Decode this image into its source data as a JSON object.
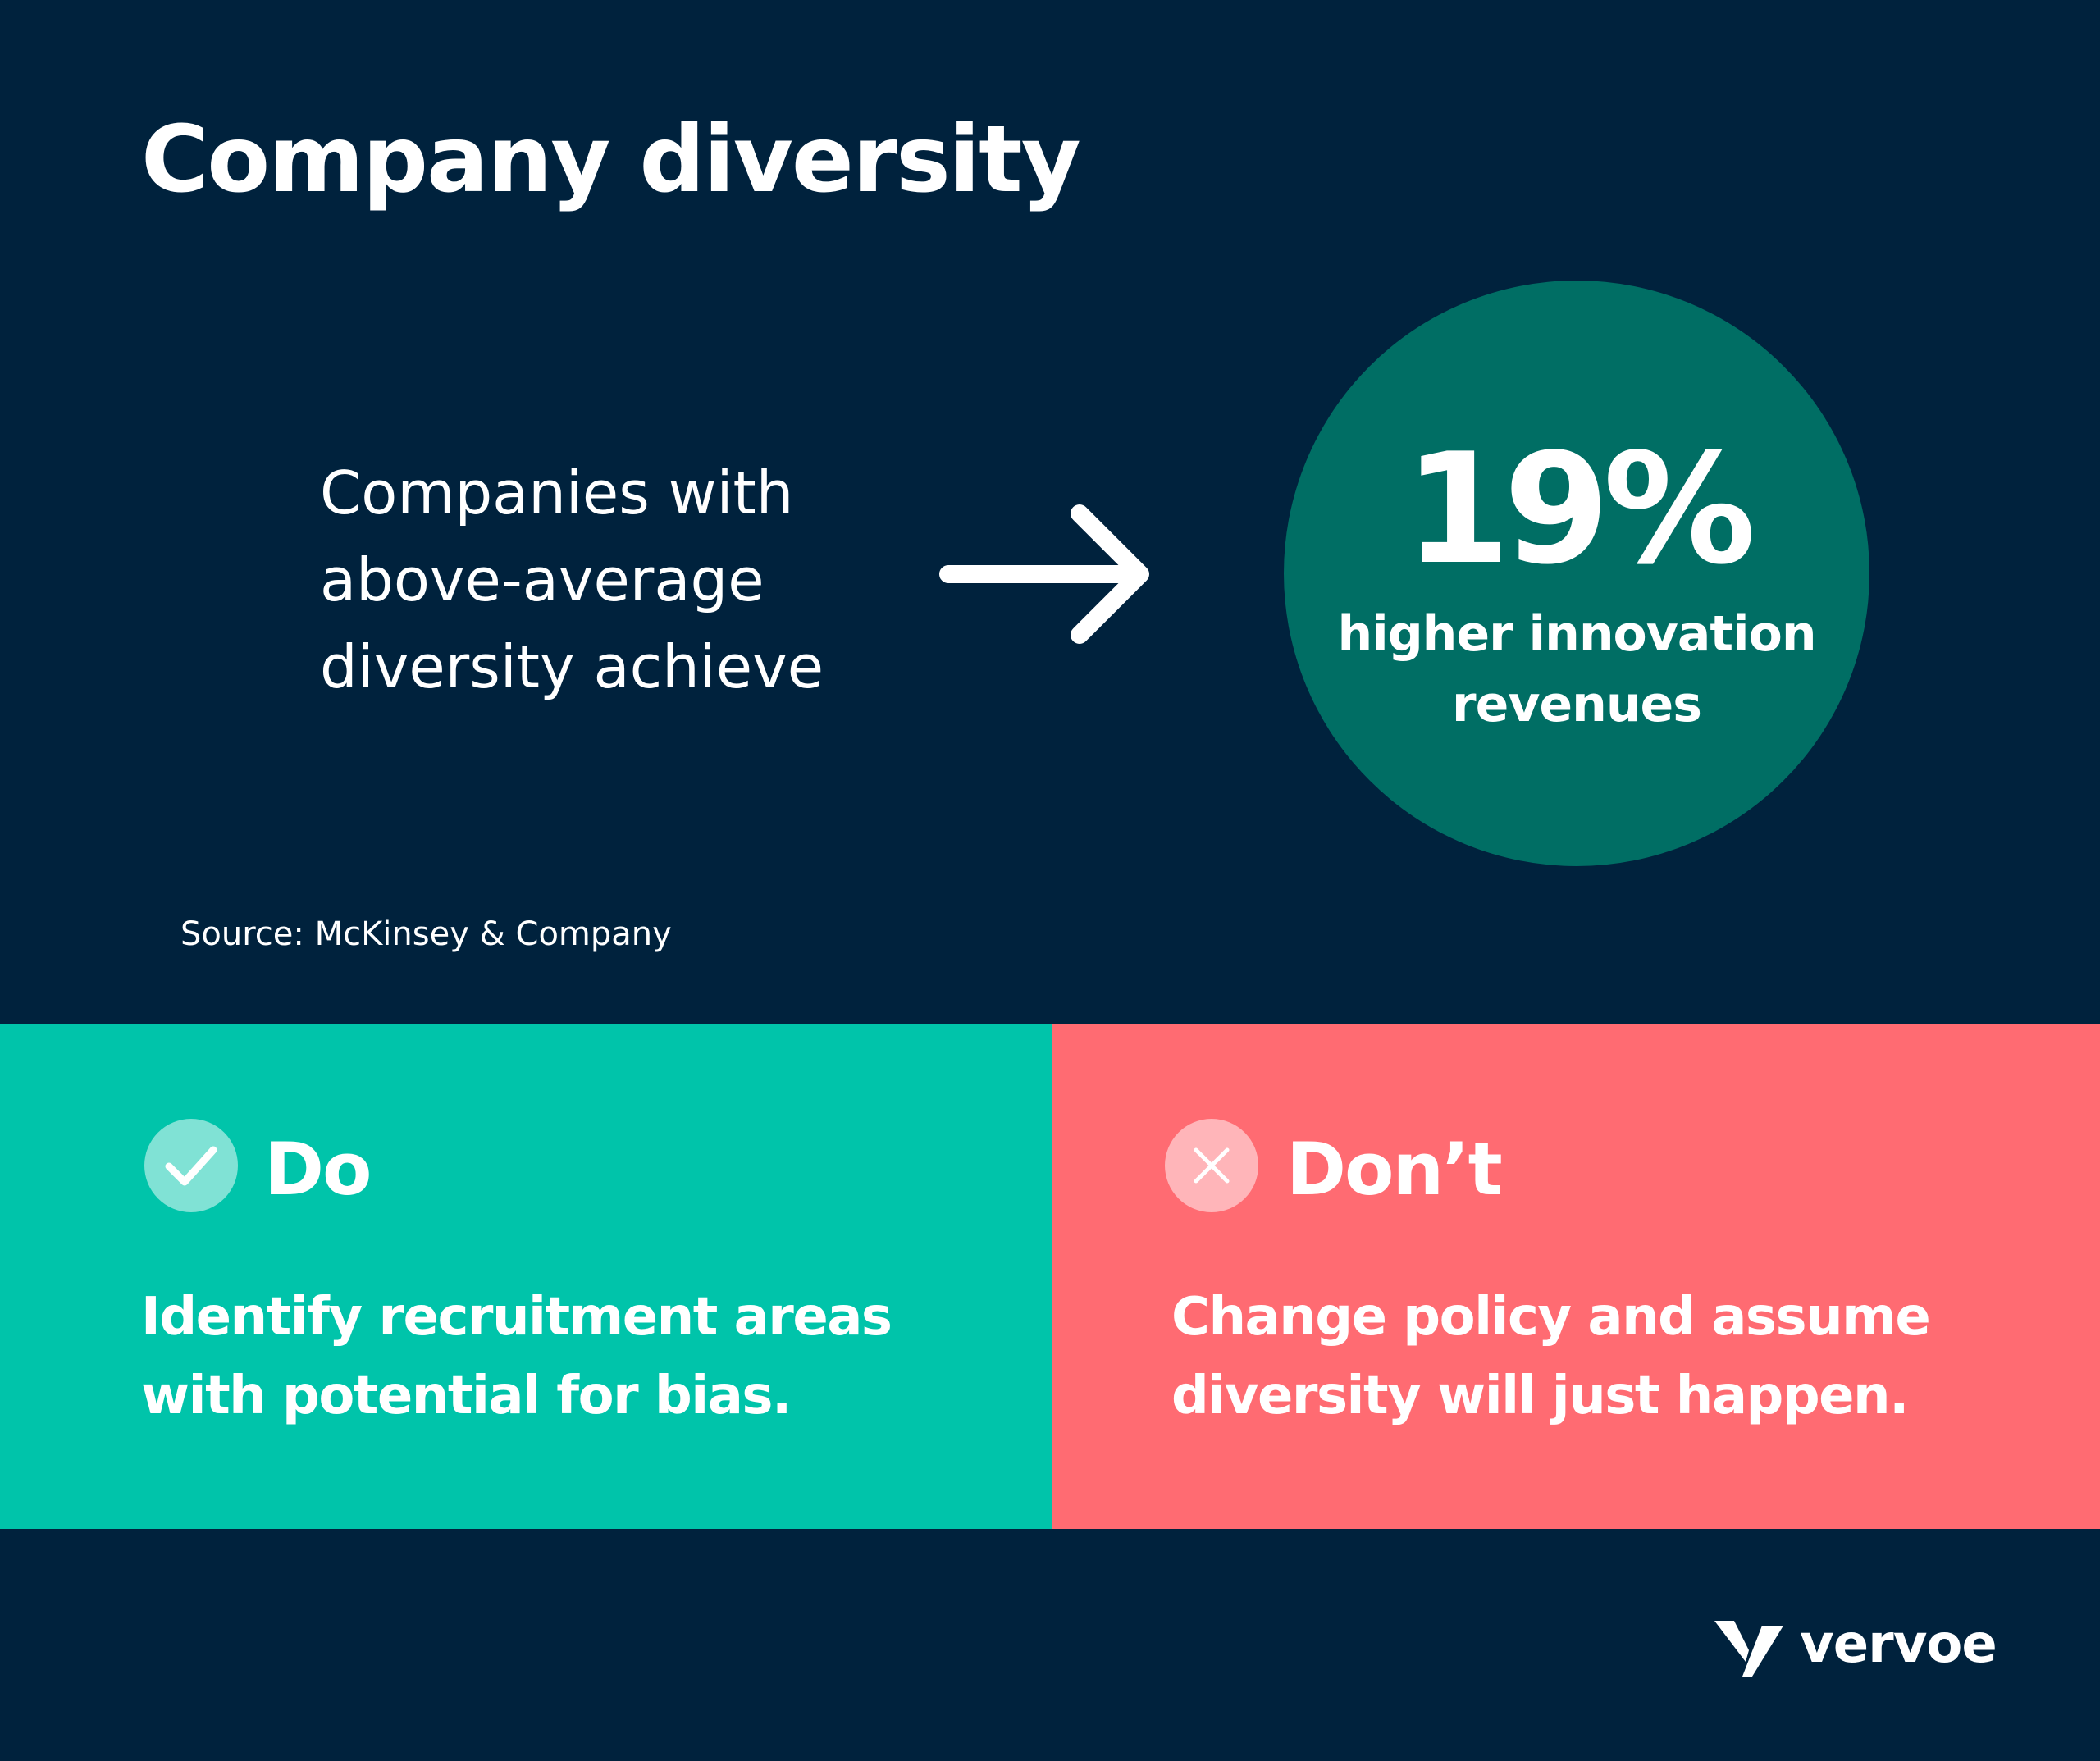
{
  "title": "Company diversity",
  "lead_text": "Companies with\nabove-average\ndiversity achieve",
  "stat": {
    "value": "19%",
    "caption": "higher innovation\nrevenues"
  },
  "source": "Source: McKinsey & Company",
  "do_panel": {
    "title": "Do",
    "text": "Identify recruitment areas\nwith potential for bias.",
    "icon": "check-icon",
    "color": "#00C4AA"
  },
  "dont_panel": {
    "title": "Don’t",
    "text": "Change policy and assume\ndiversity will just happen.",
    "icon": "close-icon",
    "color": "#FF6B72"
  },
  "brand": {
    "name": "vervoe",
    "icon": "vervoe-logo-icon"
  },
  "colors": {
    "background": "#00223D",
    "stat_circle": "#006E64",
    "text": "#FFFFFF"
  }
}
